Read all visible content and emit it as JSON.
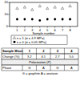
{
  "chart_data": {
    "type": "scatter",
    "x_label": "Sample number",
    "x": [
      1,
      2,
      3,
      4,
      5,
      6,
      7,
      8
    ],
    "xlim": [
      0,
      9
    ],
    "xticks": [
      1,
      2,
      3,
      4,
      5,
      6,
      7,
      8
    ],
    "ylim": [
      0,
      20
    ],
    "yticks": [
      0,
      10,
      20
    ],
    "grid": false,
    "series": [
      {
        "name": "x = 1 (σ = 4.9 MPa)",
        "color": "#555555",
        "marker": "triangle",
        "values": [
          15,
          16,
          14,
          17,
          15,
          16,
          15,
          17
        ]
      },
      {
        "name": "x = 0 (σ = 0.05 MPa)",
        "color": "#000000",
        "marker": "circle",
        "values": [
          6,
          6,
          6,
          5,
          6,
          6,
          6,
          6
        ]
      }
    ]
  },
  "table": {
    "rows": [
      [
        "Sample Mixer",
        "1",
        "2",
        "3",
        "4"
      ],
      [
        "Change (%)",
        "3.2",
        "4.1",
        "2.7",
        "5.0"
      ]
    ],
    "section": "Polarization (P)",
    "section_rows": [
      [
        "Phase",
        "G",
        "A",
        "G",
        "A"
      ]
    ],
    "note": "G = graphite  A = anatase"
  }
}
